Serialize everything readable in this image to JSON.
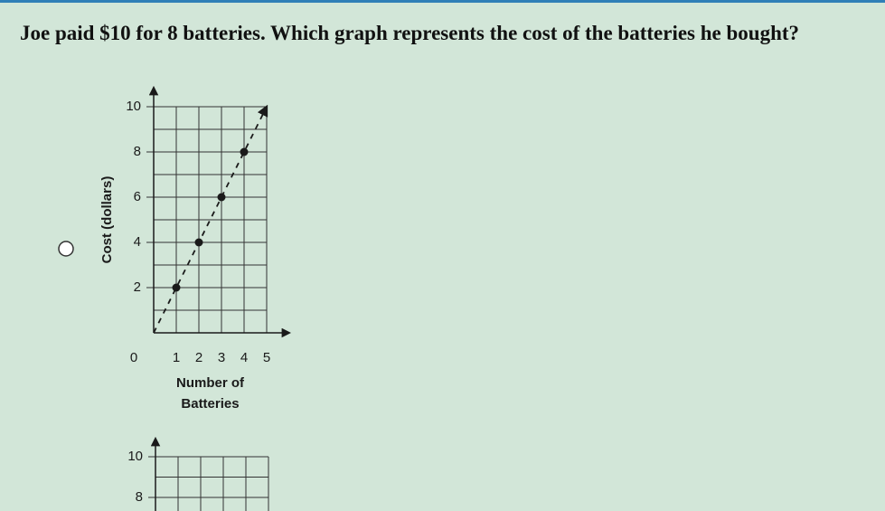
{
  "question": "Joe paid $10 for 8 batteries. Which graph represents the cost of the batteries he bought?",
  "chart_data": [
    {
      "type": "line",
      "ylabel": "Cost (dollars)",
      "xlabel": [
        "Number of",
        "Batteries"
      ],
      "xlim": [
        0,
        5
      ],
      "ylim": [
        0,
        10
      ],
      "xticks": [
        0,
        1,
        2,
        3,
        4,
        5
      ],
      "yticks": [
        2,
        4,
        6,
        8,
        10
      ],
      "yminor": [
        1,
        3,
        5,
        7,
        9
      ],
      "grid": true,
      "series": [
        {
          "x": [
            0,
            5
          ],
          "values": [
            0,
            10
          ],
          "dashed": true,
          "color": "#1a1a1a"
        },
        {
          "x": [
            1,
            2,
            3,
            4
          ],
          "values": [
            2,
            4,
            6,
            8
          ],
          "markers": true,
          "color": "#1a1a1a"
        }
      ]
    },
    {
      "type": "line",
      "xlim": [
        0,
        5
      ],
      "ylim": [
        0,
        10
      ],
      "yticks": [
        8,
        10
      ],
      "yminor": [
        9
      ],
      "grid": true,
      "series": []
    }
  ]
}
